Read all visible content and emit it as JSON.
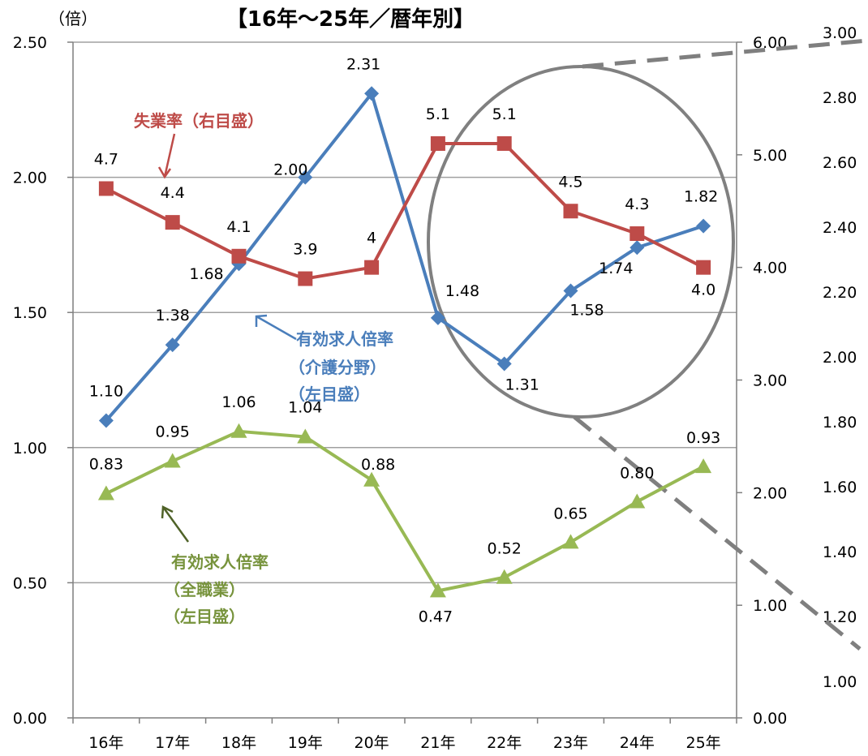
{
  "title": "【16年～25年／暦年別】",
  "unit_label": "（倍）",
  "colors": {
    "care_ratio": "#4a7ebb",
    "unemployment": "#be4b48",
    "all_ratio": "#98b954",
    "grid": "#a0a0a0",
    "ellipse": "#808080",
    "dashed": "#7f7f7f"
  },
  "annotations": {
    "unemployment": [
      "失業率（右目盛）"
    ],
    "care_ratio": [
      "有効求人倍率",
      "（介護分野）",
      "（左目盛）"
    ],
    "all_ratio": [
      "有効求人倍率",
      "（全職業）",
      "（左目盛）"
    ]
  },
  "chart_data": {
    "type": "line",
    "title": "【16年～25年／暦年別】",
    "categories": [
      "16年",
      "17年",
      "18年",
      "19年",
      "20年",
      "21年",
      "22年",
      "23年",
      "24年",
      "25年"
    ],
    "y_left": {
      "range": [
        0,
        2.5
      ],
      "ticks": [
        "0.00",
        "0.50",
        "1.00",
        "1.50",
        "2.00",
        "2.50"
      ]
    },
    "y_right": {
      "range": [
        0,
        6
      ],
      "ticks": [
        "0.00",
        "1.00",
        "2.00",
        "3.00",
        "4.00",
        "5.00",
        "6.00"
      ]
    },
    "y_zoom": {
      "ticks": [
        "1.00",
        "1.20",
        "1.40",
        "1.60",
        "1.80",
        "2.00",
        "2.20",
        "2.40",
        "2.60",
        "2.80",
        "3.00"
      ]
    },
    "grid": true,
    "series": [
      {
        "name": "有効求人倍率（介護分野）",
        "axis": "left",
        "marker": "diamond",
        "values": [
          1.1,
          1.38,
          1.68,
          2.0,
          2.31,
          1.48,
          1.31,
          1.58,
          1.74,
          1.82
        ],
        "labels": [
          "1.10",
          "1.38",
          "1.68",
          "2.00",
          "2.31",
          "1.48",
          "1.31",
          "1.58",
          "1.74",
          "1.82"
        ]
      },
      {
        "name": "失業率",
        "axis": "right",
        "marker": "square",
        "values": [
          4.7,
          4.4,
          4.1,
          3.9,
          4.0,
          5.1,
          5.1,
          4.5,
          4.3,
          4.0
        ],
        "labels": [
          "4.7",
          "4.4",
          "4.1",
          "3.9",
          "4",
          "5.1",
          "5.1",
          "4.5",
          "4.3",
          "4.0"
        ]
      },
      {
        "name": "有効求人倍率（全職業）",
        "axis": "left",
        "marker": "triangle",
        "values": [
          0.83,
          0.95,
          1.06,
          1.04,
          0.88,
          0.47,
          0.52,
          0.65,
          0.8,
          0.93
        ],
        "labels": [
          "0.83",
          "0.95",
          "1.06",
          "1.04",
          "0.88",
          "0.47",
          "0.52",
          "0.65",
          "0.80",
          "0.93"
        ]
      }
    ]
  }
}
